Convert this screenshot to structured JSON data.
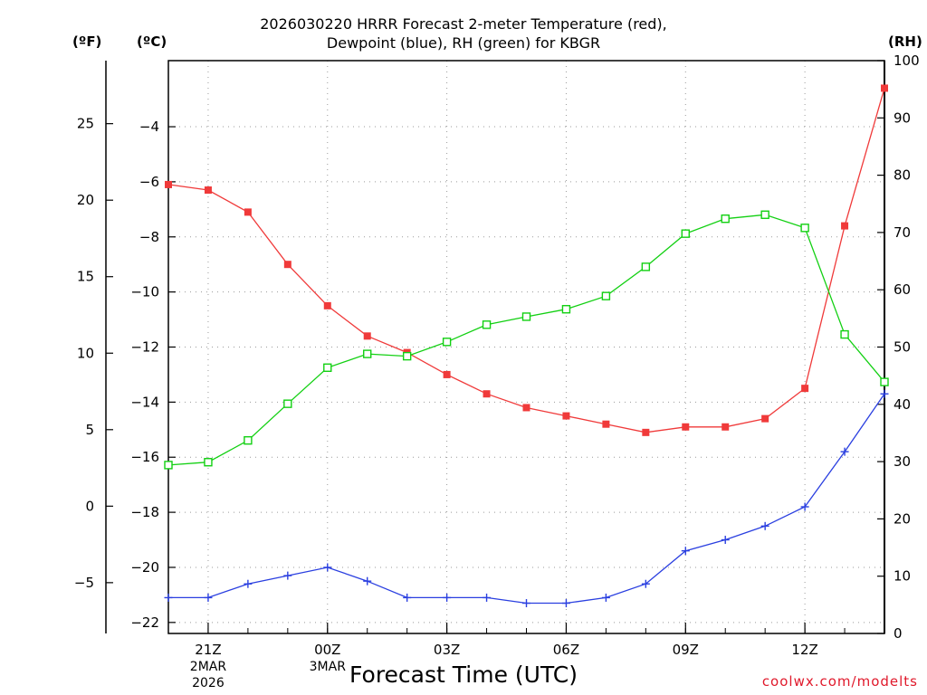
{
  "chart_data": {
    "type": "line",
    "title": "2026030220 HRRR Forecast 2-meter Temperature (red),",
    "subtitle": "Dewpoint (blue), RH (green) for KBGR",
    "xlabel": "Forecast Time (UTC)",
    "credit": "coolwx.com/modelts",
    "units": {
      "fahrenheit": "(ºF)",
      "celsius": "(ºC)",
      "rh": "(RH)"
    },
    "x_hours": [
      20,
      21,
      22,
      23,
      24,
      25,
      26,
      27,
      28,
      29,
      30,
      31,
      32,
      33,
      34,
      35,
      36,
      37,
      38
    ],
    "x_ticks": [
      {
        "hour": 21,
        "label": "21Z",
        "sub": [
          "2MAR",
          "2026"
        ]
      },
      {
        "hour": 24,
        "label": "00Z",
        "sub": [
          "3MAR"
        ]
      },
      {
        "hour": 27,
        "label": "03Z",
        "sub": []
      },
      {
        "hour": 30,
        "label": "06Z",
        "sub": []
      },
      {
        "hour": 33,
        "label": "09Z",
        "sub": []
      },
      {
        "hour": 36,
        "label": "12Z",
        "sub": []
      }
    ],
    "celsius_axis": {
      "min": -22.4,
      "max": -1.6,
      "ticks": [
        -4,
        -6,
        -8,
        -10,
        -12,
        -14,
        -16,
        -18,
        -20,
        -22
      ]
    },
    "fahrenheit_axis": {
      "ticks": [
        25,
        20,
        15,
        10,
        5,
        0,
        -5
      ]
    },
    "rh_axis": {
      "min": 0,
      "max": 100,
      "ticks": [
        0,
        10,
        20,
        30,
        40,
        50,
        60,
        70,
        80,
        90,
        100
      ]
    },
    "series": [
      {
        "name": "Temperature",
        "unit": "C",
        "color": "#f03a3a",
        "marker": "filled-square",
        "values": [
          -6.1,
          -6.3,
          -7.1,
          -9.0,
          -10.5,
          -11.6,
          -12.2,
          -13.0,
          -13.7,
          -14.2,
          -14.5,
          -14.8,
          -15.1,
          -14.9,
          -14.9,
          -14.6,
          -13.5,
          -7.6,
          -2.6
        ]
      },
      {
        "name": "Dewpoint",
        "unit": "C",
        "color": "#2a3fe0",
        "marker": "plus",
        "values": [
          -21.1,
          -21.1,
          -20.6,
          -20.3,
          -20.0,
          -20.5,
          -21.1,
          -21.1,
          -21.1,
          -21.3,
          -21.3,
          -21.1,
          -20.6,
          -19.4,
          -19.0,
          -18.5,
          -17.8,
          -15.8,
          -13.7
        ]
      },
      {
        "name": "RH",
        "unit": "%",
        "color": "#12d012",
        "marker": "open-square",
        "values": [
          29.4,
          29.9,
          33.7,
          40.1,
          46.4,
          48.8,
          48.4,
          50.9,
          53.9,
          55.3,
          56.6,
          58.9,
          64.0,
          69.8,
          72.4,
          73.1,
          70.8,
          52.2,
          43.9
        ]
      }
    ]
  }
}
